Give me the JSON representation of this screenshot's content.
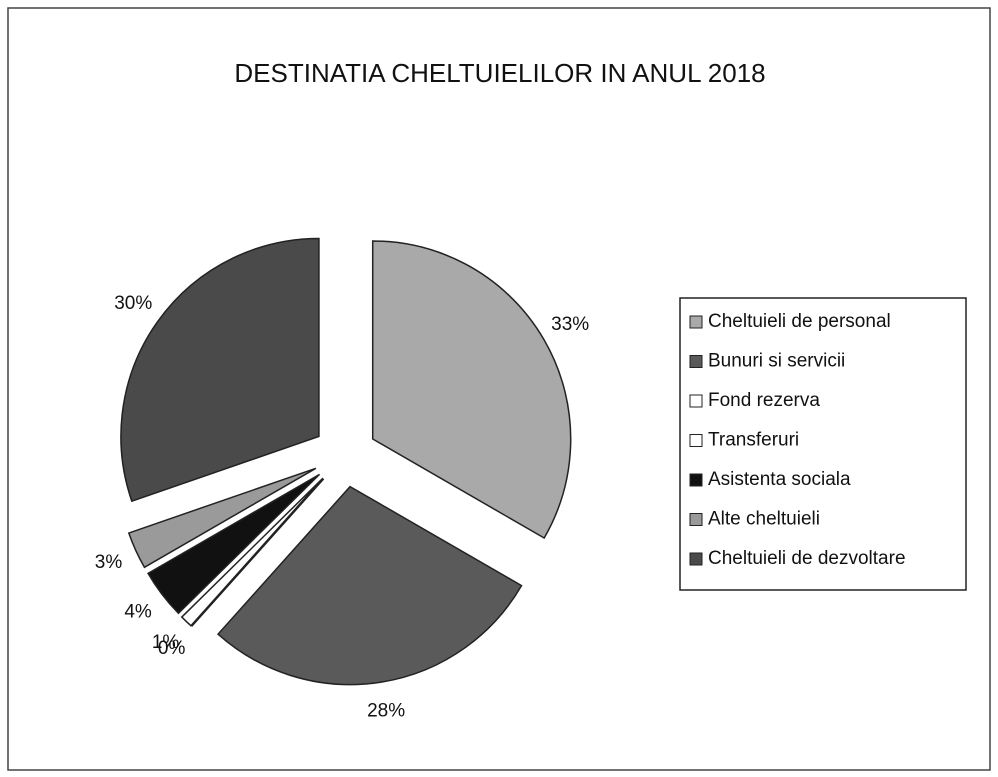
{
  "chart_data": {
    "type": "pie",
    "title": "DESTINATIA CHELTUIELILOR IN ANUL 2018",
    "categories": [
      "Cheltuieli de personal",
      "Bunuri si servicii",
      "Fond rezerva",
      "Transferuri",
      "Asistenta sociala",
      "Alte cheltuieli",
      "Cheltuieli de dezvoltare"
    ],
    "values": [
      33,
      28,
      0,
      1,
      4,
      3,
      30
    ],
    "value_labels": [
      "33%",
      "28%",
      "0%",
      "1%",
      "4%",
      "3%",
      "30%"
    ],
    "colors": [
      "#a9a9a9",
      "#5a5a5a",
      "#ffffff",
      "#ffffff",
      "#111111",
      "#9a9a9a",
      "#4a4a4a"
    ],
    "legend": "right"
  }
}
